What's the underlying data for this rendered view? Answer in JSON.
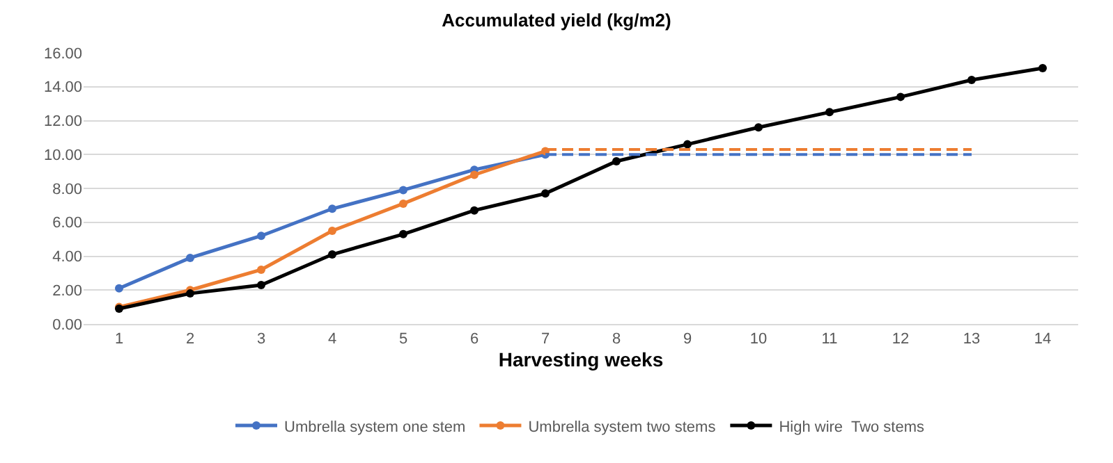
{
  "chart_data": {
    "type": "line",
    "title": "Accumulated yield (kg/m2)",
    "xlabel": "Harvesting weeks",
    "x": [
      1,
      2,
      3,
      4,
      5,
      6,
      7,
      8,
      9,
      10,
      11,
      12,
      13,
      14
    ],
    "xlim": [
      0.5,
      14.5
    ],
    "xticks": [
      1,
      2,
      3,
      4,
      5,
      6,
      7,
      8,
      9,
      10,
      11,
      12,
      13,
      14
    ],
    "ylim": [
      0,
      16
    ],
    "yticks": [
      {
        "value": 0,
        "label": "0.00"
      },
      {
        "value": 2,
        "label": "2.00"
      },
      {
        "value": 4,
        "label": "4.00"
      },
      {
        "value": 6,
        "label": "6.00"
      },
      {
        "value": 8,
        "label": "8.00"
      },
      {
        "value": 10,
        "label": "10.00"
      },
      {
        "value": 12,
        "label": "12.00"
      },
      {
        "value": 14,
        "label": "14.00"
      },
      {
        "value": 16,
        "label": "16.00"
      }
    ],
    "grid": "y",
    "legend": "bottom",
    "marker": "circle",
    "line_style": "solid",
    "series": [
      {
        "name": "Umbrella system one stem",
        "color": "#4472c4",
        "x": [
          1,
          2,
          3,
          4,
          5,
          6,
          7
        ],
        "values": [
          2.1,
          3.9,
          5.2,
          6.8,
          7.9,
          9.1,
          10.0
        ]
      },
      {
        "name": "Umbrella system two stems",
        "color": "#ed7d31",
        "x": [
          1,
          2,
          3,
          4,
          5,
          6,
          7
        ],
        "values": [
          1.0,
          2.0,
          3.2,
          5.5,
          7.1,
          8.8,
          10.2
        ]
      },
      {
        "name": "High wire  Two stems",
        "color": "#000000",
        "values": [
          0.9,
          1.8,
          2.3,
          4.1,
          5.3,
          6.7,
          7.7,
          9.6,
          10.6,
          11.6,
          12.5,
          13.4,
          14.4,
          15.1
        ]
      },
      {
        "color": "#4472c4",
        "x": [
          7,
          13
        ],
        "values": [
          10.0,
          10.0
        ],
        "line_style": "dashed",
        "marker": "none"
      },
      {
        "color": "#ed7d31",
        "x": [
          7,
          13
        ],
        "values": [
          10.3,
          10.3
        ],
        "line_style": "dashed",
        "marker": "none"
      }
    ]
  }
}
